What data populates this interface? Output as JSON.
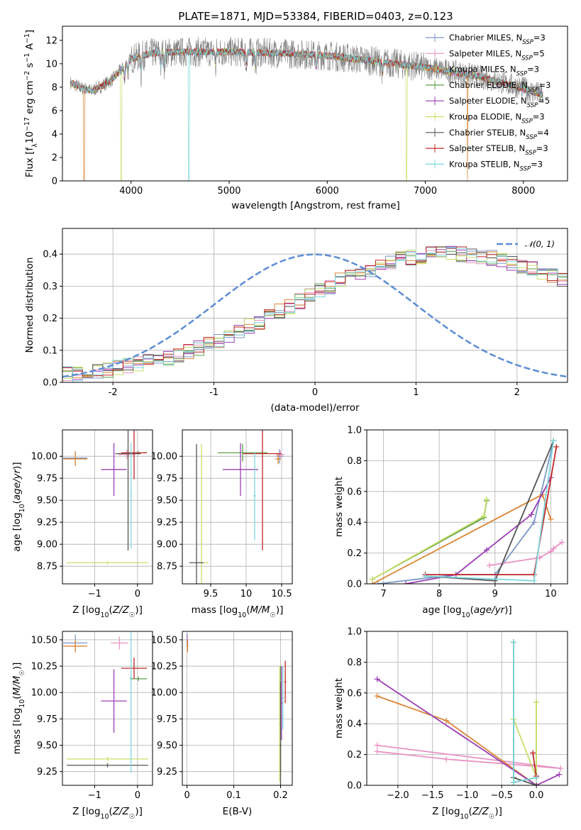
{
  "figure": {
    "title": "PLATE=1871, MJD=53384, FIBERID=0403, z=0.123"
  },
  "colors": {
    "series": [
      "#7b97c7",
      "#e992c3",
      "#d98535",
      "#5e9d4a",
      "#9b3fb4",
      "#c8e06a",
      "#555555",
      "#c0282a",
      "#7ed7dd"
    ],
    "gaussian": "#5b8dd4",
    "spectrum_gray": "#808080"
  },
  "legend_spectrum": {
    "entries": [
      {
        "name": "Chabrier MILES, N",
        "sub": "SSP",
        "suffix": "=3"
      },
      {
        "name": "Salpeter MILES, N",
        "sub": "SSP",
        "suffix": "=5"
      },
      {
        "name": "Kroupa MILES, N",
        "sub": "SSP",
        "suffix": "=3"
      },
      {
        "name": "Chabrier ELODIE, N",
        "sub": "SSP",
        "suffix": "=3"
      },
      {
        "name": "Salpeter ELODIE, N",
        "sub": "SSP",
        "suffix": "=5"
      },
      {
        "name": "Kroupa ELODIE, N",
        "sub": "SSP",
        "suffix": "=3"
      },
      {
        "name": "Chabrier STELIB, N",
        "sub": "SSP",
        "suffix": "=4"
      },
      {
        "name": "Salpeter STELIB, N",
        "sub": "SSP",
        "suffix": "=3"
      },
      {
        "name": "Kroupa STELIB, N",
        "sub": "SSP",
        "suffix": "=3"
      }
    ]
  },
  "legend_hist": {
    "label": "𝒩(0, 1)"
  },
  "chart_data": [
    {
      "id": "spectrum",
      "type": "line",
      "xlabel": "wavelength [Angstrom, rest frame]",
      "ylabel": "Flux [f_λ 10^-17 erg cm^-2 s^-1 A^-1]",
      "xlim": [
        3300,
        8450
      ],
      "ylim": [
        0,
        13.2
      ],
      "xticks": [
        4000,
        5000,
        6000,
        7000,
        8000
      ],
      "yticks": [
        0,
        2,
        4,
        6,
        8,
        10,
        12
      ],
      "continuum_knots": {
        "x": [
          3400,
          3500,
          3600,
          3700,
          3800,
          3900,
          4000,
          4200,
          4500,
          5000,
          5500,
          6000,
          6500,
          7000,
          7500,
          8000,
          8200
        ],
        "y": [
          8.3,
          7.9,
          7.7,
          8.1,
          8.6,
          9.5,
          10.4,
          10.9,
          11.0,
          11.0,
          10.9,
          10.7,
          10.2,
          9.7,
          9.0,
          7.9,
          7.3
        ]
      },
      "wavelength_range": [
        3380,
        8200
      ],
      "grid": false
    },
    {
      "id": "residuals",
      "type": "histogram",
      "xlabel": "(data-model)/error",
      "ylabel": "Normed distribution",
      "xlim": [
        -2.5,
        2.5
      ],
      "ylim": [
        0,
        0.48
      ],
      "xticks": [
        -2,
        -1,
        0,
        1,
        2
      ],
      "yticks": [
        0.0,
        0.1,
        0.2,
        0.3,
        0.4
      ],
      "bin_width": 0.1,
      "base_values": [
        0.025,
        0.028,
        0.032,
        0.036,
        0.04,
        0.045,
        0.05,
        0.056,
        0.063,
        0.071,
        0.079,
        0.088,
        0.098,
        0.109,
        0.121,
        0.133,
        0.146,
        0.16,
        0.175,
        0.19,
        0.205,
        0.221,
        0.238,
        0.254,
        0.27,
        0.286,
        0.301,
        0.316,
        0.33,
        0.343,
        0.354,
        0.365,
        0.374,
        0.382,
        0.389,
        0.394,
        0.398,
        0.4,
        0.401,
        0.4,
        0.398,
        0.394,
        0.389,
        0.382,
        0.374,
        0.365,
        0.354,
        0.343,
        0.33,
        0.316,
        0.301,
        0.286,
        0.27,
        0.254,
        0.238,
        0.221,
        0.205,
        0.19,
        0.175,
        0.16,
        0.146,
        0.133,
        0.121,
        0.109,
        0.098,
        0.088,
        0.079,
        0.071,
        0.063,
        0.056,
        0.05,
        0.045,
        0.04,
        0.036,
        0.032,
        0.028,
        0.025,
        0.022,
        0.02,
        0.018
      ],
      "gaussian": {
        "mean": 0,
        "sigma": 1
      },
      "grid": true
    },
    {
      "id": "age_vs_Z",
      "type": "errorbar",
      "xlabel": "Z [log10(Z/Z☉)]",
      "ylabel": "age  [log10(age/yr)]",
      "xlim": [
        -1.75,
        0.35
      ],
      "ylim": [
        8.55,
        10.3
      ],
      "xticks": [
        -1,
        0
      ],
      "xticklabels": [
        "−1",
        "0"
      ],
      "yticks": [
        8.75,
        9.0,
        9.25,
        9.5,
        9.75,
        10.0
      ],
      "points": [
        {
          "x": -1.45,
          "y": 9.98,
          "xerr": 0.28,
          "yerr": 0.08
        },
        {
          "x": -0.25,
          "y": 10.02,
          "xerr": 0.2,
          "yerr": 0.05
        },
        {
          "x": -1.45,
          "y": 9.97,
          "xerr": 0.28,
          "yerr": 0.08
        },
        {
          "x": 0.02,
          "y": 10.04,
          "xerr": 0.2,
          "yerr": 0.02
        },
        {
          "x": -0.55,
          "y": 9.85,
          "xerr": 0.3,
          "yerr": 0.3
        },
        {
          "x": -0.7,
          "y": 8.79,
          "xerr": 0.95,
          "yerr": 0.02
        },
        {
          "x": -0.22,
          "y": 10.03,
          "xerr": 0.3,
          "yerr": 1.1
        },
        {
          "x": -0.08,
          "y": 10.04,
          "xerr": 0.3,
          "yerr": 0.3
        },
        {
          "x": -0.15,
          "y": 9.55,
          "xerr": 0.02,
          "yerr": 0.6
        }
      ],
      "grid": true
    },
    {
      "id": "age_vs_mass",
      "type": "errorbar",
      "xlabel": "mass [log10(M/M☉)]",
      "ylabel": "",
      "xlim": [
        9.1,
        10.65
      ],
      "ylim": [
        8.55,
        10.3
      ],
      "xticks": [
        9.5,
        10.0,
        10.5
      ],
      "yticks": [
        8.75,
        9.0,
        9.25,
        9.5,
        9.75,
        10.0
      ],
      "points": [
        {
          "x": 10.47,
          "y": 10.0,
          "xerr": 0.05,
          "yerr": 0.08
        },
        {
          "x": 10.48,
          "y": 10.02,
          "xerr": 0.06,
          "yerr": 0.05
        },
        {
          "x": 10.45,
          "y": 9.97,
          "xerr": 0.04,
          "yerr": 0.06
        },
        {
          "x": 9.95,
          "y": 10.04,
          "xerr": 0.35,
          "yerr": 0.1
        },
        {
          "x": 9.92,
          "y": 9.85,
          "xerr": 0.25,
          "yerr": 0.3
        },
        {
          "x": 9.37,
          "y": 8.79,
          "xerr": 0.1,
          "yerr": 1.35
        },
        {
          "x": 9.3,
          "y": 8.79,
          "xerr": 0.1,
          "yerr": 1.35
        },
        {
          "x": 10.23,
          "y": 10.03,
          "xerr": 0.27,
          "yerr": 1.1
        },
        {
          "x": 10.12,
          "y": 9.55,
          "xerr": 0.02,
          "yerr": 0.5
        }
      ],
      "grid": true
    },
    {
      "id": "weight_vs_age",
      "type": "line",
      "xlabel": "age  [log10(age/yr)]",
      "ylabel": "mass weight",
      "xlim": [
        6.7,
        10.3
      ],
      "ylim": [
        0,
        1.0
      ],
      "xticks": [
        7,
        8,
        9,
        10
      ],
      "yticks": [
        0.0,
        0.2,
        0.4,
        0.6,
        0.8,
        1.0
      ],
      "series": [
        {
          "x": [
            6.9,
            8.3,
            9.0,
            9.7,
            10.05
          ],
          "y": [
            0.0,
            0.06,
            0.06,
            0.4,
            0.93
          ]
        },
        {
          "x": [
            8.9,
            9.8,
            10.0,
            10.05,
            10.2
          ],
          "y": [
            0.12,
            0.17,
            0.21,
            0.23,
            0.27
          ]
        },
        {
          "x": [
            6.8,
            9.85,
            10.0
          ],
          "y": [
            0.0,
            0.58,
            0.42
          ]
        },
        {
          "x": [
            6.8,
            8.8,
            8.85
          ],
          "y": [
            0.03,
            0.43,
            0.54
          ]
        },
        {
          "x": [
            7.4,
            8.3,
            8.85,
            9.65,
            10.0
          ],
          "y": [
            0.0,
            0.06,
            0.22,
            0.45,
            0.69
          ]
        },
        {
          "x": [
            6.8,
            8.8,
            8.85
          ],
          "y": [
            0.03,
            0.44,
            0.55
          ]
        },
        {
          "x": [
            7.75,
            9.0,
            10.05
          ],
          "y": [
            0.05,
            0.02,
            0.93
          ]
        },
        {
          "x": [
            7.75,
            9.7,
            10.1
          ],
          "y": [
            0.06,
            0.06,
            0.89
          ]
        },
        {
          "x": [
            7.75,
            9.7,
            10.05
          ],
          "y": [
            0.05,
            0.02,
            0.93
          ]
        }
      ],
      "grid": true
    },
    {
      "id": "mass_vs_Z",
      "type": "errorbar",
      "xlabel": "Z [log10(Z/Z☉)]",
      "ylabel": "mass [log10(M/M☉)]",
      "xlim": [
        -1.75,
        0.35
      ],
      "ylim": [
        9.12,
        10.58
      ],
      "xticks": [
        -1,
        0
      ],
      "xticklabels": [
        "−1",
        "0"
      ],
      "yticks": [
        9.25,
        9.5,
        9.75,
        10.0,
        10.25,
        10.5
      ],
      "points": [
        {
          "x": -1.45,
          "y": 10.47,
          "xerr": 0.28,
          "yerr": 0.08
        },
        {
          "x": -0.42,
          "y": 10.47,
          "xerr": 0.2,
          "yerr": 0.06
        },
        {
          "x": -1.45,
          "y": 10.44,
          "xerr": 0.28,
          "yerr": 0.06
        },
        {
          "x": 0.02,
          "y": 10.13,
          "xerr": 0.2,
          "yerr": 0.02
        },
        {
          "x": -0.55,
          "y": 9.92,
          "xerr": 0.3,
          "yerr": 0.3
        },
        {
          "x": -0.7,
          "y": 9.37,
          "xerr": 0.95,
          "yerr": 0.02
        },
        {
          "x": -0.7,
          "y": 9.31,
          "xerr": 0.95,
          "yerr": 0.02
        },
        {
          "x": -0.08,
          "y": 10.23,
          "xerr": 0.3,
          "yerr": 0.1
        },
        {
          "x": -0.15,
          "y": 10.14,
          "xerr": 0.02,
          "yerr": 0.9
        }
      ],
      "grid": true
    },
    {
      "id": "mass_vs_EBV",
      "type": "errorbar",
      "xlabel": "E(B-V)",
      "ylabel": "",
      "xlim": [
        -0.01,
        0.225
      ],
      "ylim": [
        9.12,
        10.58
      ],
      "xticks": [
        0.0,
        0.1,
        0.2
      ],
      "yticks": [
        9.25,
        9.5,
        9.75,
        10.0,
        10.25,
        10.5
      ],
      "points": [
        {
          "x": 0.0,
          "y": 10.5,
          "xerr": 0.002,
          "yerr": 0.06
        },
        {
          "x": 0.001,
          "y": 10.47,
          "xerr": 0.002,
          "yerr": 0.08
        },
        {
          "x": 0.001,
          "y": 10.44,
          "xerr": 0.002,
          "yerr": 0.06
        },
        {
          "x": 0.2,
          "y": 9.75,
          "xerr": 0.002,
          "yerr": 0.5
        },
        {
          "x": 0.202,
          "y": 9.9,
          "xerr": 0.002,
          "yerr": 0.35
        },
        {
          "x": 0.198,
          "y": 9.7,
          "xerr": 0.002,
          "yerr": 0.55
        },
        {
          "x": 0.2,
          "y": 9.5,
          "xerr": 0.002,
          "yerr": 0.6
        },
        {
          "x": 0.21,
          "y": 10.1,
          "xerr": 0.002,
          "yerr": 0.2
        },
        {
          "x": 0.205,
          "y": 9.95,
          "xerr": 0.002,
          "yerr": 0.3
        }
      ],
      "grid": true
    },
    {
      "id": "weight_vs_Z",
      "type": "line",
      "xlabel": "Z [log10(Z/Z☉)]",
      "ylabel": "mass weight",
      "xlim": [
        -2.45,
        0.45
      ],
      "ylim": [
        0,
        1.0
      ],
      "xticks": [
        -2.0,
        -1.5,
        -1.0,
        -0.5,
        0.0
      ],
      "xticklabels": [
        "−2.0",
        "−1.5",
        "−1.0",
        "−0.5",
        "0.0"
      ],
      "yticks": [
        0.0,
        0.2,
        0.4,
        0.6,
        0.8,
        1.0
      ],
      "series": [
        {
          "x": [
            -0.33,
            -0.33,
            0.0
          ],
          "y": [
            0.93,
            0.02,
            0.05
          ]
        },
        {
          "x": [
            -2.3,
            -1.3,
            0.35,
            -2.3
          ],
          "y": [
            0.22,
            0.17,
            0.11,
            0.26
          ]
        },
        {
          "x": [
            -2.3,
            -1.3,
            0.0
          ],
          "y": [
            0.58,
            0.42,
            0.0
          ]
        },
        {
          "x": [
            -0.33,
            -0.33,
            0.0,
            0.0
          ],
          "y": [
            0.43,
            0.02,
            0.05,
            0.54
          ]
        },
        {
          "x": [
            -2.3,
            0.0,
            0.33
          ],
          "y": [
            0.69,
            0.0,
            0.07
          ]
        },
        {
          "x": [
            -0.33,
            0.0,
            0.0
          ],
          "y": [
            0.43,
            0.05,
            0.54
          ]
        },
        {
          "x": [
            -0.33,
            -0.33,
            0.0
          ],
          "y": [
            0.93,
            0.05,
            0.0
          ]
        },
        {
          "x": [
            -0.05,
            0.0,
            0.0
          ],
          "y": [
            0.21,
            0.05,
            0.06
          ]
        },
        {
          "x": [
            -0.33,
            -0.33,
            0.0
          ],
          "y": [
            0.93,
            0.02,
            0.05
          ]
        }
      ],
      "grid": true
    }
  ]
}
